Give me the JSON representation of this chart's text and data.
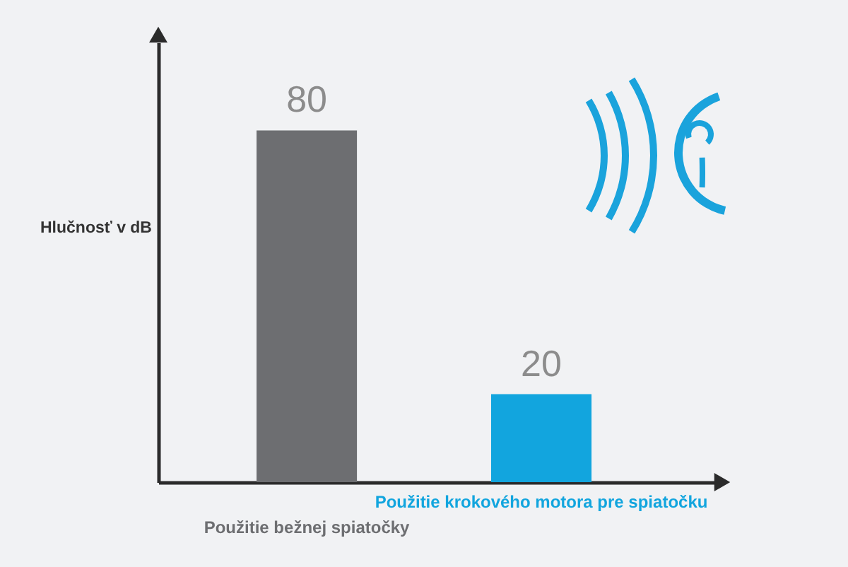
{
  "chart_data": {
    "type": "bar",
    "ylabel": "Hlučnosť v dB",
    "categories": [
      "Použitie bežnej spiatočky",
      "Použitie krokového motora pre spiatočku"
    ],
    "values": [
      80,
      20
    ],
    "colors": [
      "#6d6e71",
      "#12a5de"
    ],
    "data_labels": true,
    "tick_labels": "x"
  }
}
